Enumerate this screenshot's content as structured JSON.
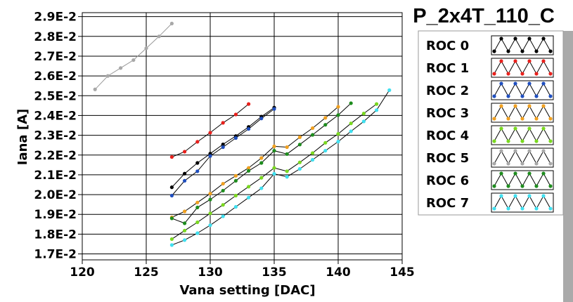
{
  "chart_data": {
    "type": "line",
    "title": "P_2x4T_110_C",
    "xlabel": "Vana setting [DAC]",
    "ylabel": "Iana [A]",
    "xlim": [
      120,
      145
    ],
    "ylim": [
      0.0167,
      0.0292
    ],
    "x_ticks": [
      120,
      125,
      130,
      135,
      140,
      145
    ],
    "x_tick_labels": [
      "120",
      "125",
      "130",
      "135",
      "140",
      "145"
    ],
    "y_ticks": [
      0.017,
      0.018,
      0.019,
      0.02,
      0.021,
      0.022,
      0.023,
      0.024,
      0.025,
      0.026,
      0.027,
      0.028,
      0.029
    ],
    "y_tick_labels": [
      "1.7E-2",
      "1.8E-2",
      "1.9E-2",
      "2.0E-2",
      "2.1E-2",
      "2.2E-2",
      "2.3E-2",
      "2.4E-2",
      "2.5E-2",
      "2.6E-2",
      "2.7E-2",
      "2.8E-2",
      "2.9E-2"
    ],
    "grid": true,
    "legend_position": "right",
    "series": [
      {
        "name": "ROC 0",
        "color": "#000000",
        "x": [
          127,
          128,
          129,
          130,
          131,
          132,
          133,
          134,
          135
        ],
        "y": [
          0.02037,
          0.02106,
          0.0216,
          0.02207,
          0.02254,
          0.02296,
          0.02342,
          0.02394,
          0.0244
        ]
      },
      {
        "name": "ROC 1",
        "color": "#e8201c",
        "x": [
          127,
          128,
          129,
          130,
          131,
          132,
          133
        ],
        "y": [
          0.0219,
          0.02217,
          0.02267,
          0.02313,
          0.02363,
          0.02405,
          0.02458
        ]
      },
      {
        "name": "ROC 2",
        "color": "#1f4fbf",
        "x": [
          127,
          128,
          129,
          130,
          131,
          132,
          133,
          134,
          135
        ],
        "y": [
          0.01995,
          0.0207,
          0.02118,
          0.02195,
          0.0224,
          0.02286,
          0.02332,
          0.02385,
          0.02433
        ]
      },
      {
        "name": "ROC 3",
        "color": "#f0a020",
        "x": [
          127,
          128,
          129,
          130,
          131,
          132,
          133,
          134,
          135,
          136,
          137,
          138,
          139,
          140
        ],
        "y": [
          0.01885,
          0.01915,
          0.0196,
          0.02005,
          0.02055,
          0.02095,
          0.02135,
          0.02185,
          0.02244,
          0.0224,
          0.0229,
          0.02336,
          0.02388,
          0.02444
        ]
      },
      {
        "name": "ROC 4",
        "color": "#7ad820",
        "x": [
          127,
          128,
          129,
          130,
          131,
          132,
          133,
          134,
          135,
          136,
          137,
          138,
          139,
          140,
          141,
          142,
          143
        ],
        "y": [
          0.01775,
          0.01818,
          0.0186,
          0.01905,
          0.01948,
          0.01995,
          0.0204,
          0.02085,
          0.02135,
          0.02118,
          0.02163,
          0.0221,
          0.02262,
          0.02307,
          0.0236,
          0.0241,
          0.02458
        ]
      },
      {
        "name": "ROC 5",
        "color": "#a8a8a8",
        "x": [
          121,
          122,
          123,
          124,
          125,
          126,
          127
        ],
        "y": [
          0.02532,
          0.026,
          0.0264,
          0.0268,
          0.0274,
          0.028,
          0.02865
        ]
      },
      {
        "name": "ROC 6",
        "color": "#1e8c1e",
        "x": [
          127,
          128,
          129,
          130,
          131,
          132,
          133,
          134,
          135,
          136,
          137,
          138,
          139,
          140,
          141
        ],
        "y": [
          0.0188,
          0.01855,
          0.01935,
          0.01975,
          0.0202,
          0.0207,
          0.0212,
          0.0216,
          0.02222,
          0.02205,
          0.02253,
          0.02302,
          0.02353,
          0.02402,
          0.02462
        ]
      },
      {
        "name": "ROC 7",
        "color": "#40e0f0",
        "x": [
          127,
          128,
          129,
          130,
          131,
          132,
          133,
          134,
          135,
          136,
          137,
          138,
          139,
          140,
          141,
          142,
          143,
          144
        ],
        "y": [
          0.01745,
          0.0177,
          0.01805,
          0.01845,
          0.0189,
          0.01938,
          0.01985,
          0.02032,
          0.02105,
          0.0209,
          0.0213,
          0.02176,
          0.02222,
          0.02268,
          0.0232,
          0.0237,
          0.02427,
          0.02528
        ]
      }
    ]
  }
}
